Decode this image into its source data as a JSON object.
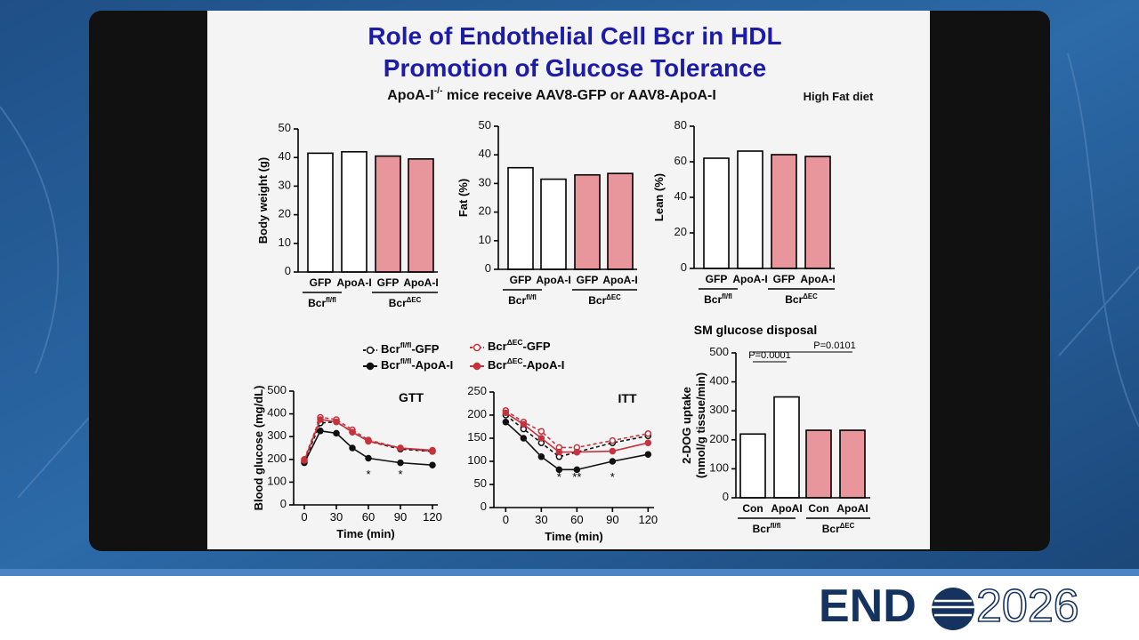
{
  "slide": {
    "title_lines": [
      "Role of Endothelial Cell Bcr in HDL",
      "Promotion of Glucose Tolerance"
    ],
    "subtitle": "ApoA-I-/- mice receive AAV8-GFP or AAV8-ApoA-I",
    "note": "High Fat diet"
  },
  "footer": {
    "logo_left": "END",
    "logo_right": "2026"
  },
  "chart_data": [
    {
      "type": "bar",
      "ylabel": [
        "Body weight (g)"
      ],
      "categories": [
        "GFP",
        "ApoA-I",
        "GFP",
        "ApoA-I"
      ],
      "values": [
        41.5,
        42,
        40.5,
        39.5
      ],
      "colors": [
        "#ffffff",
        "#ffffff",
        "#e8969b",
        "#e8969b"
      ],
      "groups": [
        "Bcrfl/fl",
        "BcrΔEC"
      ],
      "ylim": [
        0,
        50
      ],
      "yticks": [
        0,
        10,
        20,
        30,
        40,
        50
      ]
    },
    {
      "type": "bar",
      "ylabel": [
        "Fat (%)"
      ],
      "categories": [
        "GFP",
        "ApoA-I",
        "GFP",
        "ApoA-I"
      ],
      "values": [
        35.5,
        31.5,
        33,
        33.5
      ],
      "colors": [
        "#ffffff",
        "#ffffff",
        "#e8969b",
        "#e8969b"
      ],
      "groups": [
        "Bcrfl/fl",
        "BcrΔEC"
      ],
      "ylim": [
        0,
        50
      ],
      "yticks": [
        0,
        10,
        20,
        30,
        40,
        50
      ]
    },
    {
      "type": "bar",
      "ylabel": [
        "Lean (%)"
      ],
      "categories": [
        "GFP",
        "ApoA-I",
        "GFP",
        "ApoA-I"
      ],
      "values": [
        62,
        66,
        64,
        63
      ],
      "colors": [
        "#ffffff",
        "#ffffff",
        "#e8969b",
        "#e8969b"
      ],
      "groups": [
        "Bcrfl/fl",
        "BcrΔEC"
      ],
      "ylim": [
        0,
        80
      ],
      "yticks": [
        0,
        20,
        40,
        60,
        80
      ]
    },
    {
      "type": "line",
      "title": "GTT",
      "xlabel": "Time (min)",
      "ylabel": [
        "Blood glucose (mg/dL)"
      ],
      "x": [
        0,
        15,
        30,
        45,
        60,
        90,
        120
      ],
      "xlim": [
        -10,
        125
      ],
      "xticks": [
        0,
        30,
        60,
        90,
        120
      ],
      "ylim": [
        0,
        500
      ],
      "yticks": [
        0,
        100,
        200,
        300,
        400,
        500
      ],
      "series": [
        {
          "name": "Bcrfl/fl-GFP",
          "color": "#111111",
          "style": "dashed",
          "marker": "open",
          "values": [
            190,
            360,
            365,
            320,
            280,
            245,
            235
          ]
        },
        {
          "name": "BcrΔEC-GFP",
          "color": "#c8323c",
          "style": "dashed",
          "marker": "open",
          "values": [
            200,
            385,
            375,
            330,
            285,
            250,
            235
          ]
        },
        {
          "name": "Bcrfl/fl-ApoA-I",
          "color": "#111111",
          "style": "solid",
          "marker": "filled",
          "values": [
            185,
            325,
            315,
            250,
            205,
            185,
            175
          ]
        },
        {
          "name": "BcrΔEC-ApoA-I",
          "color": "#c8323c",
          "style": "solid",
          "marker": "filled",
          "values": [
            195,
            375,
            365,
            320,
            280,
            250,
            240
          ]
        }
      ],
      "annotations": [
        {
          "x": 60,
          "text": "*"
        },
        {
          "x": 90,
          "text": "*"
        }
      ]
    },
    {
      "type": "line",
      "title": "ITT",
      "xlabel": "Time (min)",
      "ylabel": [],
      "x": [
        0,
        15,
        30,
        45,
        60,
        90,
        120
      ],
      "xlim": [
        -10,
        125
      ],
      "xticks": [
        0,
        30,
        60,
        90,
        120
      ],
      "ylim": [
        0,
        250
      ],
      "yticks": [
        0,
        50,
        100,
        150,
        200,
        250
      ],
      "series": [
        {
          "name": "Bcrfl/fl-GFP",
          "color": "#111111",
          "style": "dashed",
          "marker": "open",
          "values": [
            200,
            170,
            140,
            110,
            120,
            140,
            155
          ]
        },
        {
          "name": "BcrΔEC-GFP",
          "color": "#c8323c",
          "style": "dashed",
          "marker": "open",
          "values": [
            210,
            185,
            165,
            130,
            130,
            145,
            160
          ]
        },
        {
          "name": "Bcrfl/fl-ApoA-I",
          "color": "#111111",
          "style": "solid",
          "marker": "filled",
          "values": [
            185,
            150,
            110,
            82,
            82,
            100,
            115
          ]
        },
        {
          "name": "BcrΔEC-ApoA-I",
          "color": "#c8323c",
          "style": "solid",
          "marker": "filled",
          "values": [
            205,
            180,
            150,
            120,
            120,
            122,
            140
          ]
        }
      ],
      "annotations": [
        {
          "x": 45,
          "text": "*"
        },
        {
          "x": 60,
          "text": "**"
        },
        {
          "x": 90,
          "text": "*"
        }
      ]
    },
    {
      "type": "bar",
      "title": "SM glucose disposal",
      "ylabel": [
        "2-DOG uptake",
        "(nmol/g tissue/min)"
      ],
      "categories": [
        "Con",
        "ApoAI",
        "Con",
        "ApoAI"
      ],
      "values": [
        220,
        348,
        233,
        233
      ],
      "colors": [
        "#ffffff",
        "#ffffff",
        "#e8969b",
        "#e8969b"
      ],
      "groups": [
        "Bcrfl/fl",
        "BcrΔEC"
      ],
      "ylim": [
        0,
        500
      ],
      "yticks": [
        0,
        100,
        200,
        300,
        400,
        500
      ],
      "annotations": [
        "P=0.0001",
        "P=0.0101"
      ]
    }
  ]
}
